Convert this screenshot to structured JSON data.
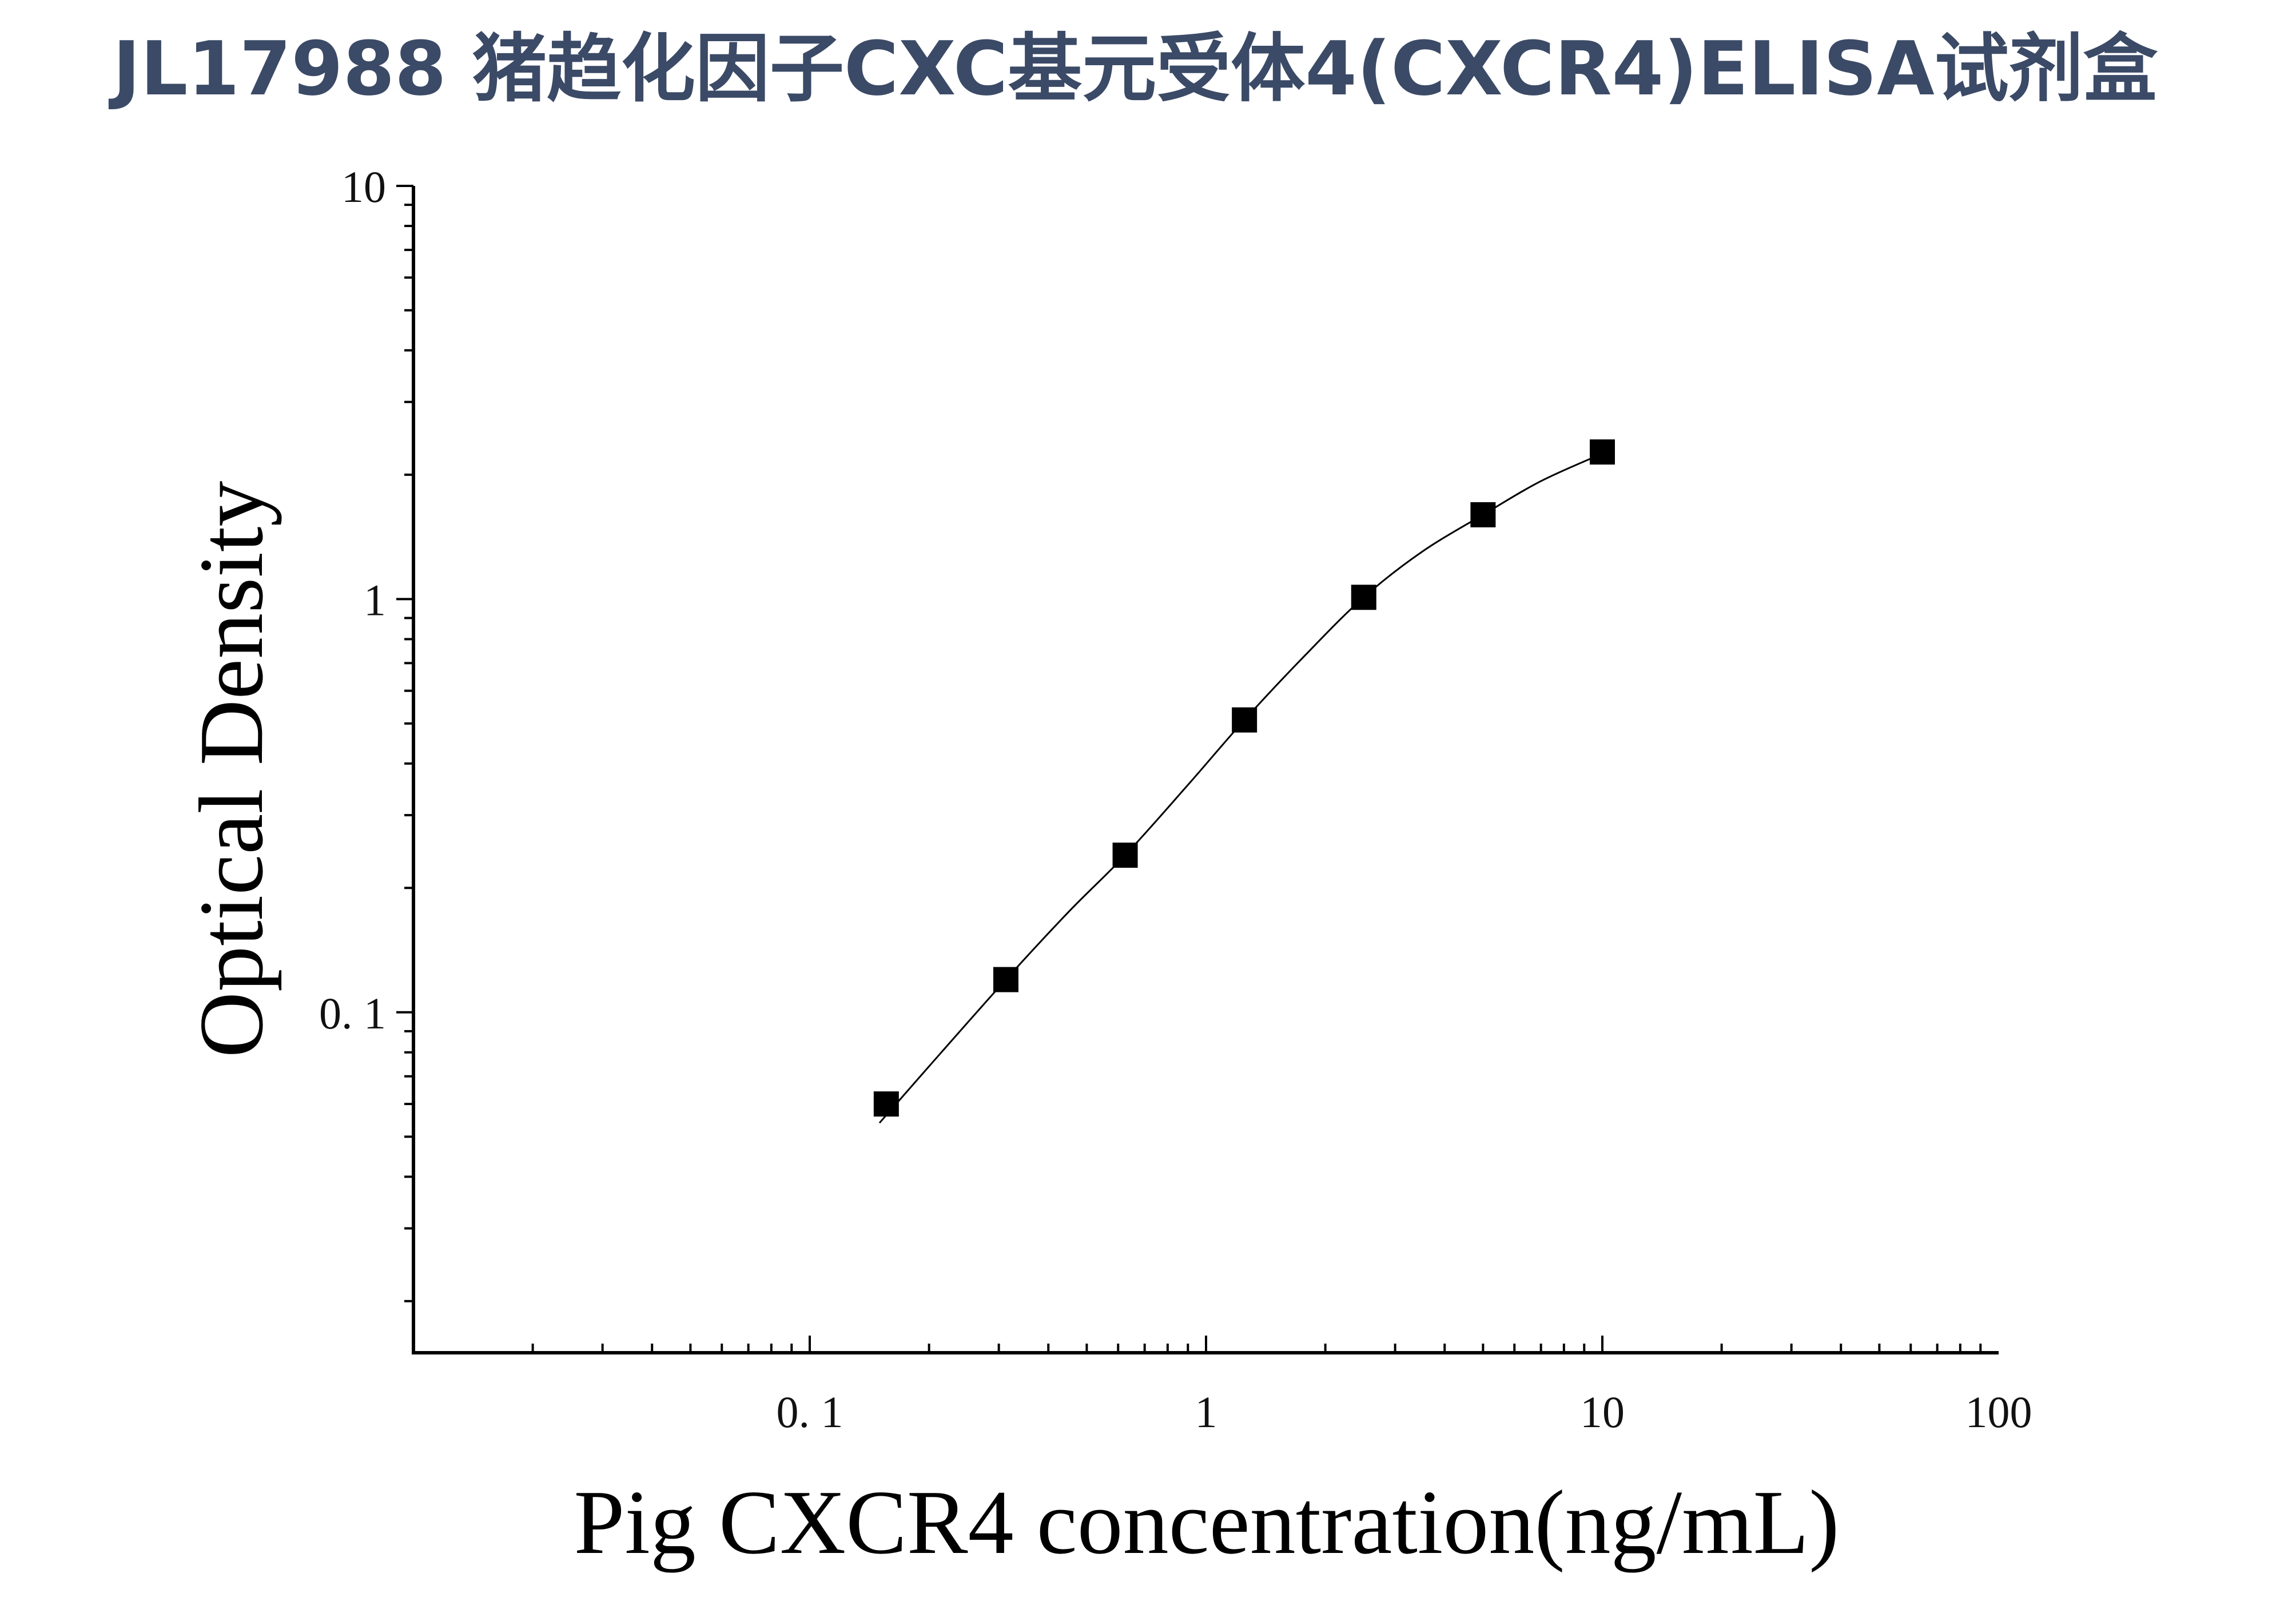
{
  "page": {
    "title": "JL17988 猪趋化因子CXC基元受体4(CXCR4)ELISA试剂盒"
  },
  "chart_data": {
    "type": "scatter",
    "title": "JL17988 猪趋化因子CXC基元受体4(CXCR4)ELISA试剂盒",
    "xlabel": "Pig CXCR4 concentration(ng/mL)",
    "ylabel": "Optical Density",
    "x_scale": "log",
    "y_scale": "log",
    "xlim": [
      0.01,
      100
    ],
    "ylim": [
      0.015,
      10
    ],
    "x_ticks": [
      {
        "value": 0.1,
        "label": "0. 1"
      },
      {
        "value": 1,
        "label": "1"
      },
      {
        "value": 10,
        "label": "10"
      },
      {
        "value": 100,
        "label": "100"
      }
    ],
    "y_ticks": [
      {
        "value": 0.1,
        "label": "0. 1"
      },
      {
        "value": 1,
        "label": "1"
      },
      {
        "value": 10,
        "label": "10"
      }
    ],
    "grid": false,
    "series": [
      {
        "marker": "square",
        "color": "#000000",
        "points": [
          {
            "x": 0.156,
            "y": 0.06
          },
          {
            "x": 0.3125,
            "y": 0.12
          },
          {
            "x": 0.625,
            "y": 0.24
          },
          {
            "x": 1.25,
            "y": 0.51
          },
          {
            "x": 2.5,
            "y": 1.01
          },
          {
            "x": 5,
            "y": 1.6
          },
          {
            "x": 10,
            "y": 2.27
          }
        ]
      }
    ],
    "fit_curve": {
      "color": "#000000",
      "points": [
        {
          "x": 0.15,
          "y": 0.054
        },
        {
          "x": 0.2,
          "y": 0.074
        },
        {
          "x": 0.3125,
          "y": 0.12
        },
        {
          "x": 0.45,
          "y": 0.175
        },
        {
          "x": 0.625,
          "y": 0.24
        },
        {
          "x": 0.9,
          "y": 0.355
        },
        {
          "x": 1.25,
          "y": 0.51
        },
        {
          "x": 1.8,
          "y": 0.74
        },
        {
          "x": 2.5,
          "y": 1.01
        },
        {
          "x": 3.5,
          "y": 1.3
        },
        {
          "x": 5,
          "y": 1.6
        },
        {
          "x": 7,
          "y": 1.93
        },
        {
          "x": 10,
          "y": 2.25
        }
      ]
    }
  }
}
